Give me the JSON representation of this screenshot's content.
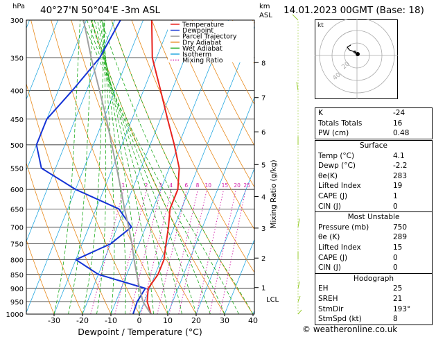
{
  "header": {
    "hpa_label": "hPa",
    "location": "40°27'N 50°04'E -3m ASL",
    "km_label": "km",
    "asl_label": "ASL",
    "datetime": "14.01.2023 00GMT (Base: 18)",
    "credit": "© weatheronline.co.uk"
  },
  "legend": [
    {
      "label": "Temperature",
      "color": "#e8231e",
      "style": "solid"
    },
    {
      "label": "Dewpoint",
      "color": "#1533d6",
      "style": "solid"
    },
    {
      "label": "Parcel Trajectory",
      "color": "#a0a0a0",
      "style": "solid"
    },
    {
      "label": "Dry Adiabat",
      "color": "#e88a1c",
      "style": "solid"
    },
    {
      "label": "Wet Adiabat",
      "color": "#1aaa1a",
      "style": "solid"
    },
    {
      "label": "Isotherm",
      "color": "#27a9e1",
      "style": "solid"
    },
    {
      "label": "Mixing Ratio",
      "color": "#d21ba8",
      "style": "dotted"
    }
  ],
  "chart_data": {
    "type": "line",
    "xlabel": "Dewpoint / Temperature (°C)",
    "ylabel_right": "Mixing Ratio (g/kg)",
    "x_ticks": [
      -30,
      -20,
      -10,
      0,
      10,
      20,
      30,
      40
    ],
    "pressure_levels": [
      300,
      350,
      400,
      450,
      500,
      550,
      600,
      650,
      700,
      750,
      800,
      850,
      900,
      950,
      1000
    ],
    "km_ticks": [
      {
        "km": "1",
        "p": 897
      },
      {
        "km": "2",
        "p": 795
      },
      {
        "km": "3",
        "p": 703
      },
      {
        "km": "4",
        "p": 618
      },
      {
        "km": "5",
        "p": 542
      },
      {
        "km": "6",
        "p": 474
      },
      {
        "km": "7",
        "p": 412
      },
      {
        "km": "8",
        "p": 357
      }
    ],
    "lcl": {
      "label": "LCL",
      "p": 940
    },
    "mixing_ratio_labels": [
      "1",
      "2",
      "3",
      "4",
      "6",
      "8",
      "10",
      "15",
      "20",
      "25"
    ],
    "mixing_ratio_values": [
      1,
      2,
      3,
      4,
      6,
      8,
      10,
      15,
      20,
      25
    ],
    "series": [
      {
        "name": "Temperature",
        "color": "#e8231e",
        "points": [
          [
            1000,
            4.1
          ],
          [
            950,
            1
          ],
          [
            900,
            -0.5
          ],
          [
            850,
            1
          ],
          [
            800,
            1
          ],
          [
            750,
            -0.5
          ],
          [
            700,
            -2
          ],
          [
            650,
            -4
          ],
          [
            600,
            -4
          ],
          [
            550,
            -6.5
          ],
          [
            500,
            -11.5
          ],
          [
            450,
            -17.5
          ],
          [
            400,
            -24
          ],
          [
            350,
            -31.5
          ],
          [
            300,
            -37
          ]
        ]
      },
      {
        "name": "Dewpoint",
        "color": "#1533d6",
        "points": [
          [
            1000,
            -2.2
          ],
          [
            950,
            -2.5
          ],
          [
            900,
            -1.5
          ],
          [
            850,
            -20
          ],
          [
            800,
            -30
          ],
          [
            750,
            -20
          ],
          [
            700,
            -15
          ],
          [
            650,
            -22
          ],
          [
            600,
            -40
          ],
          [
            550,
            -55
          ],
          [
            500,
            -60
          ],
          [
            450,
            -60
          ],
          [
            400,
            -55
          ],
          [
            350,
            -50
          ],
          [
            300,
            -48
          ]
        ]
      },
      {
        "name": "Parcel Trajectory",
        "color": "#a0a0a0",
        "points": [
          [
            1000,
            4.1
          ],
          [
            950,
            -0.5
          ],
          [
            900,
            -3.5
          ],
          [
            850,
            -6.5
          ],
          [
            800,
            -9.5
          ],
          [
            750,
            -12.5
          ],
          [
            700,
            -16
          ],
          [
            650,
            -20
          ],
          [
            600,
            -24
          ],
          [
            550,
            -28.5
          ],
          [
            500,
            -33.5
          ],
          [
            450,
            -39
          ],
          [
            400,
            -45.5
          ],
          [
            350,
            -53
          ],
          [
            300,
            -61
          ]
        ]
      }
    ]
  },
  "hodograph": {
    "label": "kt",
    "rings": [
      "20",
      "40"
    ]
  },
  "indices": [
    {
      "label": "K",
      "value": "-24"
    },
    {
      "label": "Totals Totals",
      "value": "16"
    },
    {
      "label": "PW (cm)",
      "value": "0.48"
    }
  ],
  "surface": {
    "title": "Surface",
    "rows": [
      {
        "label": "Temp (°C)",
        "value": "4.1"
      },
      {
        "label": "Dewp (°C)",
        "value": "-2.2"
      },
      {
        "label": "θe(K)",
        "value": "283"
      },
      {
        "label": "Lifted Index",
        "value": "19"
      },
      {
        "label": "CAPE (J)",
        "value": "1"
      },
      {
        "label": "CIN (J)",
        "value": "0"
      }
    ]
  },
  "most_unstable": {
    "title": "Most Unstable",
    "rows": [
      {
        "label": "Pressure (mb)",
        "value": "750"
      },
      {
        "label": "θe (K)",
        "value": "289"
      },
      {
        "label": "Lifted Index",
        "value": "15"
      },
      {
        "label": "CAPE (J)",
        "value": "0"
      },
      {
        "label": "CIN (J)",
        "value": "0"
      }
    ]
  },
  "hodograph_table": {
    "title": "Hodograph",
    "rows": [
      {
        "label": "EH",
        "value": "25"
      },
      {
        "label": "SREH",
        "value": "21"
      },
      {
        "label": "StmDir",
        "value": "193°"
      },
      {
        "label": "StmSpd (kt)",
        "value": "8"
      }
    ]
  },
  "colors": {
    "isotherm": "#27a9e1",
    "dry_adiabat": "#e88a1c",
    "wet_adiabat": "#1aaa1a",
    "mixing_ratio": "#d21ba8",
    "wind_barb": "#9acd32"
  }
}
